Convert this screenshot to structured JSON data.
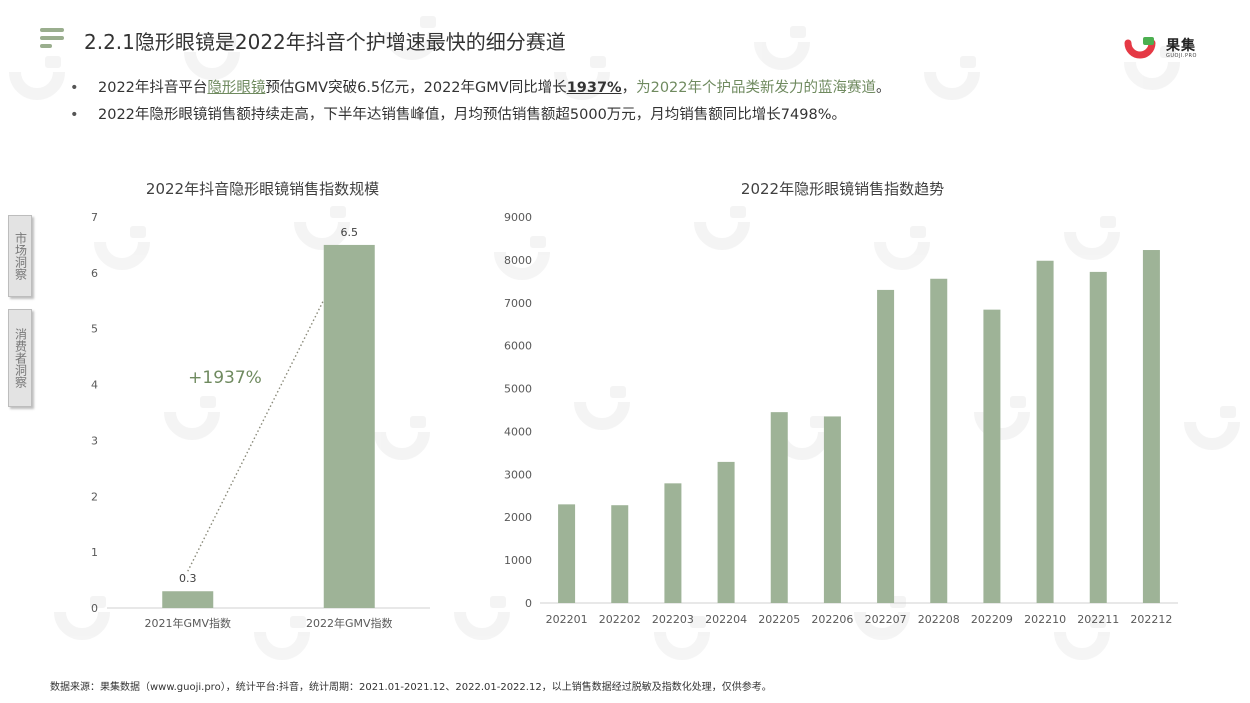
{
  "header": {
    "title": "2.2.1隐形眼镜是2022年抖音个护增速最快的细分赛道",
    "logo_name": "果集",
    "logo_sub": "GUOJI.PRO"
  },
  "bullets": [
    {
      "dot": "•",
      "p1": "2022年抖音平台",
      "p2": "隐形眼镜",
      "p3": "预估GMV突破6.5亿元，2022年GMV同比增长",
      "p4": "1937%",
      "p5": "，",
      "p6": "为2022年个护品类新发力的蓝海赛道",
      "p7": "。"
    },
    {
      "dot": "•",
      "text": "2022年隐形眼镜销售额持续走高，下半年达销售峰值，月均预估销售额超5000万元，月均销售额同比增长7498%。"
    }
  ],
  "side_tabs": [
    "市场洞察",
    "消费者洞察"
  ],
  "colors": {
    "bar": "#9eb397",
    "accent_text": "#6f8a5f",
    "axis": "#d0d0d0",
    "tick": "#595959"
  },
  "watermark": {
    "icon": "guoji-logo-watermark"
  },
  "chart_data": [
    {
      "type": "bar",
      "title": "2022年抖音隐形眼镜销售指数规模",
      "categories": [
        "2021年GMV指数",
        "2022年GMV指数"
      ],
      "values": [
        0.3,
        6.5
      ],
      "data_labels": [
        "0.3",
        "6.5"
      ],
      "ylim": [
        0,
        7
      ],
      "yticks": [
        0,
        1,
        2,
        3,
        4,
        5,
        6,
        7
      ],
      "annotation": "+1937%",
      "grid": false,
      "legend": "none"
    },
    {
      "type": "bar",
      "title": "2022年隐形眼镜销售指数趋势",
      "categories": [
        "202201",
        "202202",
        "202203",
        "202204",
        "202205",
        "202206",
        "202207",
        "202208",
        "202209",
        "202210",
        "202211",
        "202212"
      ],
      "values": [
        2300,
        2280,
        2790,
        3290,
        4450,
        4350,
        7300,
        7560,
        6840,
        7980,
        7720,
        8230
      ],
      "ylim": [
        0,
        9000
      ],
      "yticks": [
        0,
        1000,
        2000,
        3000,
        4000,
        5000,
        6000,
        7000,
        8000,
        9000
      ],
      "grid": false,
      "legend": "none"
    }
  ],
  "footnote": "数据来源：果集数据（www.guoji.pro），统计平台:抖音，统计周期：2021.01-2021.12、2022.01-2022.12，以上销售数据经过脱敏及指数化处理，仅供参考。"
}
